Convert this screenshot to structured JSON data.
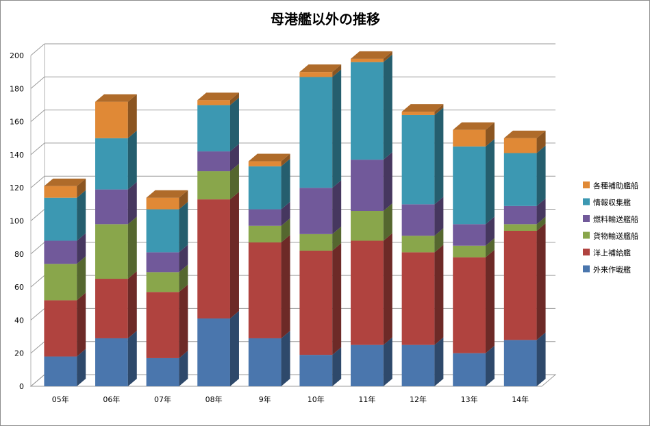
{
  "chart_data": {
    "type": "bar",
    "stacked": true,
    "three_d": true,
    "title": "母港艦以外の推移",
    "xlabel": "",
    "ylabel": "",
    "ylim": [
      0,
      200
    ],
    "yticks": [
      0,
      20,
      40,
      60,
      80,
      100,
      120,
      140,
      160,
      180,
      200
    ],
    "grid": true,
    "legend_position": "right",
    "categories": [
      "05年",
      "06年",
      "07年",
      "08年",
      "9年",
      "10年",
      "11年",
      "12年",
      "13年",
      "14年"
    ],
    "series": [
      {
        "name": "外来作戦艦",
        "color": "#4a76ad",
        "values": [
          18,
          29,
          17,
          41,
          29,
          19,
          25,
          25,
          20,
          28
        ]
      },
      {
        "name": "洋上補給艦",
        "color": "#b0433f",
        "values": [
          34,
          36,
          40,
          72,
          58,
          63,
          63,
          56,
          58,
          66
        ]
      },
      {
        "name": "貨物輸送艦船",
        "color": "#89a64b",
        "values": [
          22,
          33,
          12,
          17,
          10,
          10,
          18,
          10,
          7,
          4
        ]
      },
      {
        "name": "燃料輸送艦船",
        "color": "#71599a",
        "values": [
          14,
          21,
          12,
          12,
          10,
          28,
          31,
          19,
          13,
          11
        ]
      },
      {
        "name": "情報収集艦",
        "color": "#3c98b2",
        "values": [
          26,
          31,
          26,
          28,
          26,
          67,
          59,
          54,
          47,
          32
        ]
      },
      {
        "name": "各種補助艦船",
        "color": "#e08936",
        "values": [
          7,
          22,
          7,
          3,
          3,
          3,
          2,
          2,
          10,
          9
        ]
      }
    ]
  }
}
